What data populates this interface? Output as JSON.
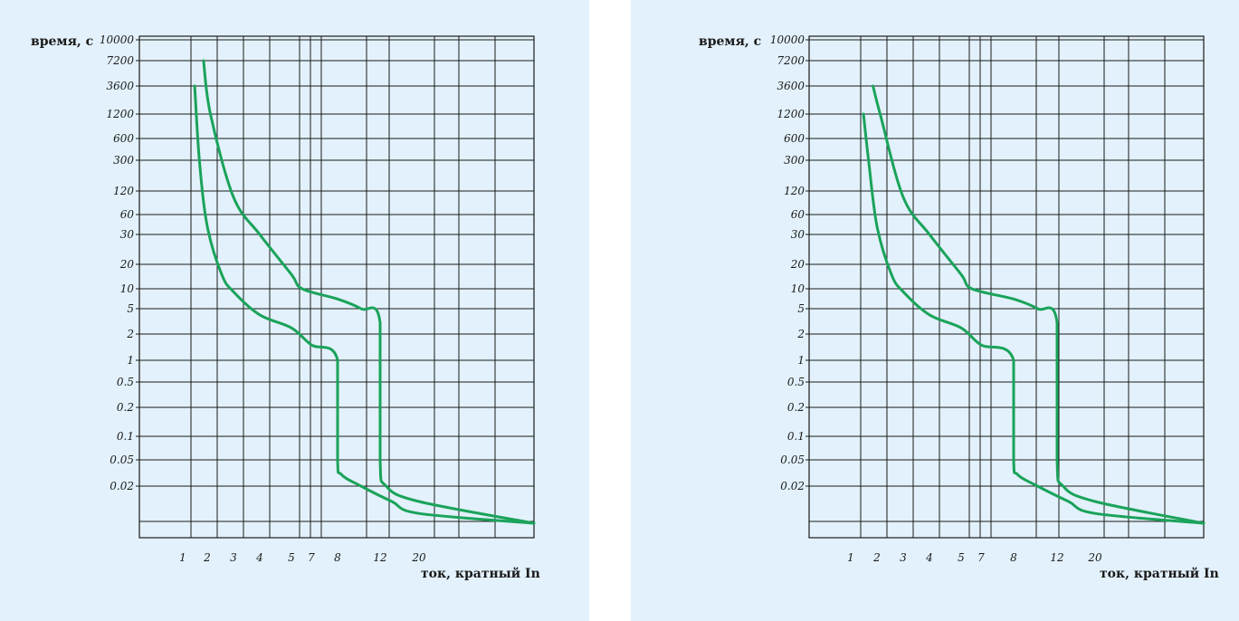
{
  "colors": {
    "background": "#e2f1fb",
    "grid": "#1a1a1a",
    "curve": "#1aa35a"
  },
  "chart_data": [
    {
      "type": "line",
      "ylabel": "время, с",
      "xlabel": "ток, кратный In",
      "y_scale": "log",
      "grid": true,
      "yticks": [
        "10000",
        "7200",
        "3600",
        "1200",
        "600",
        "300",
        "120",
        "60",
        "30",
        "20",
        "10",
        "5",
        "2",
        "1",
        "0.5",
        "0.2",
        "0.1",
        "0.05",
        "0.02"
      ],
      "xticks": [
        "1",
        "2",
        "3",
        "4",
        "5",
        "7",
        "8",
        "12",
        "20"
      ],
      "series": [
        {
          "points": [
            [
              1.4,
              3600
            ],
            [
              1.6,
              300
            ],
            [
              2.0,
              40
            ],
            [
              2.5,
              15
            ],
            [
              3,
              9
            ],
            [
              4,
              4
            ],
            [
              5,
              2.5
            ],
            [
              7,
              1.5
            ],
            [
              8,
              1
            ],
            [
              8,
              0.05
            ],
            [
              8.3,
              0.03
            ],
            [
              10,
              0.02
            ],
            [
              14,
              0.015
            ],
            [
              20,
              0.012
            ],
            [
              40,
              0.01
            ]
          ]
        },
        {
          "points": [
            [
              1.8,
              7200
            ],
            [
              2.1,
              1200
            ],
            [
              3,
              100
            ],
            [
              4,
              30
            ],
            [
              5,
              15
            ],
            [
              6,
              10
            ],
            [
              8,
              7
            ],
            [
              10,
              5
            ],
            [
              12,
              3
            ],
            [
              12,
              0.05
            ],
            [
              13,
              0.02
            ],
            [
              20,
              0.015
            ],
            [
              40,
              0.01
            ]
          ]
        }
      ]
    },
    {
      "type": "line",
      "ylabel": "время, с",
      "xlabel": "ток, кратный In",
      "y_scale": "log",
      "grid": true,
      "yticks": [
        "10000",
        "7200",
        "3600",
        "1200",
        "600",
        "300",
        "120",
        "60",
        "30",
        "20",
        "10",
        "5",
        "2",
        "1",
        "0.5",
        "0.2",
        "0.1",
        "0.05",
        "0.02"
      ],
      "xticks": [
        "1",
        "2",
        "3",
        "4",
        "5",
        "7",
        "8",
        "12",
        "20"
      ],
      "series": [
        {
          "points": [
            [
              1.4,
              1200
            ],
            [
              1.6,
              300
            ],
            [
              2.0,
              40
            ],
            [
              2.5,
              15
            ],
            [
              3,
              9
            ],
            [
              4,
              4
            ],
            [
              5,
              2.5
            ],
            [
              7,
              1.5
            ],
            [
              8,
              1
            ],
            [
              8,
              0.05
            ],
            [
              8.3,
              0.03
            ],
            [
              10,
              0.02
            ],
            [
              14,
              0.015
            ],
            [
              20,
              0.012
            ],
            [
              40,
              0.01
            ]
          ]
        },
        {
          "points": [
            [
              1.8,
              3600
            ],
            [
              2.1,
              1200
            ],
            [
              3,
              100
            ],
            [
              4,
              30
            ],
            [
              5,
              15
            ],
            [
              6,
              10
            ],
            [
              8,
              7
            ],
            [
              10,
              5
            ],
            [
              12,
              3
            ],
            [
              12,
              0.05
            ],
            [
              13,
              0.02
            ],
            [
              20,
              0.015
            ],
            [
              40,
              0.01
            ]
          ]
        }
      ]
    }
  ]
}
